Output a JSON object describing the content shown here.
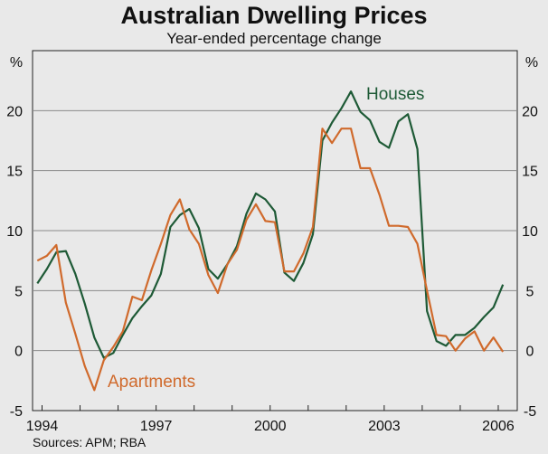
{
  "chart_data": {
    "type": "line",
    "title": "Australian Dwelling Prices",
    "subtitle": "Year-ended percentage change",
    "source": "Sources: APM; RBA",
    "unit_left": "%",
    "unit_right": "%",
    "ylim": [
      -5,
      25
    ],
    "yticks": [
      -5,
      0,
      5,
      10,
      15,
      20
    ],
    "xlim": [
      1993.75,
      2006.5
    ],
    "xticks": [
      {
        "label": "1994",
        "value": 1994
      },
      {
        "label": "1997",
        "value": 1997
      },
      {
        "label": "2000",
        "value": 2000
      },
      {
        "label": "2003",
        "value": 2003
      },
      {
        "label": "2006",
        "value": 2006
      }
    ],
    "grid": true,
    "series": [
      {
        "name": "Houses",
        "label": "Houses",
        "color": "#1e5a36",
        "x": [
          1993.875,
          1994.125,
          1994.375,
          1994.625,
          1994.875,
          1995.125,
          1995.375,
          1995.625,
          1995.875,
          1996.125,
          1996.375,
          1996.625,
          1996.875,
          1997.125,
          1997.375,
          1997.625,
          1997.875,
          1998.125,
          1998.375,
          1998.625,
          1998.875,
          1999.125,
          1999.375,
          1999.625,
          1999.875,
          2000.125,
          2000.375,
          2000.625,
          2000.875,
          2001.125,
          2001.375,
          2001.625,
          2001.875,
          2002.125,
          2002.375,
          2002.625,
          2002.875,
          2003.125,
          2003.375,
          2003.625,
          2003.875,
          2004.125,
          2004.375,
          2004.625,
          2004.875,
          2005.125,
          2005.375,
          2005.625,
          2005.875,
          2006.125
        ],
        "values": [
          5.6,
          6.8,
          8.2,
          8.3,
          6.4,
          3.9,
          1.1,
          -0.6,
          -0.2,
          1.3,
          2.7,
          3.7,
          4.6,
          6.4,
          10.3,
          11.3,
          11.8,
          10.2,
          6.8,
          6.0,
          7.2,
          8.7,
          11.4,
          13.1,
          12.6,
          11.6,
          6.5,
          5.8,
          7.3,
          9.7,
          17.5,
          19.0,
          20.2,
          21.6,
          19.9,
          19.2,
          17.4,
          16.9,
          19.1,
          19.7,
          16.8,
          3.3,
          0.8,
          0.4,
          1.3,
          1.3,
          1.9,
          2.8,
          3.6,
          5.5
        ]
      },
      {
        "name": "Apartments",
        "label": "Apartments",
        "color": "#d06a2c",
        "x": [
          1993.875,
          1994.125,
          1994.375,
          1994.625,
          1994.875,
          1995.125,
          1995.375,
          1995.625,
          1995.875,
          1996.125,
          1996.375,
          1996.625,
          1996.875,
          1997.125,
          1997.375,
          1997.625,
          1997.875,
          1998.125,
          1998.375,
          1998.625,
          1998.875,
          1999.125,
          1999.375,
          1999.625,
          1999.875,
          2000.125,
          2000.375,
          2000.625,
          2000.875,
          2001.125,
          2001.375,
          2001.625,
          2001.875,
          2002.125,
          2002.375,
          2002.625,
          2002.875,
          2003.125,
          2003.375,
          2003.625,
          2003.875,
          2004.125,
          2004.375,
          2004.625,
          2004.875,
          2005.125,
          2005.375,
          2005.625,
          2005.875,
          2006.125
        ],
        "values": [
          7.5,
          7.9,
          8.8,
          4.0,
          1.4,
          -1.3,
          -3.3,
          -0.8,
          0.3,
          1.6,
          4.5,
          4.2,
          6.7,
          8.9,
          11.3,
          12.6,
          10.1,
          8.9,
          6.3,
          4.8,
          7.2,
          8.4,
          10.9,
          12.2,
          10.8,
          10.7,
          6.6,
          6.6,
          8.1,
          10.3,
          18.5,
          17.3,
          18.5,
          18.5,
          15.2,
          15.2,
          13.0,
          10.4,
          10.4,
          10.3,
          8.9,
          5.0,
          1.3,
          1.2,
          0.0,
          1.0,
          1.6,
          0.0,
          1.1,
          -0.1
        ]
      }
    ]
  }
}
